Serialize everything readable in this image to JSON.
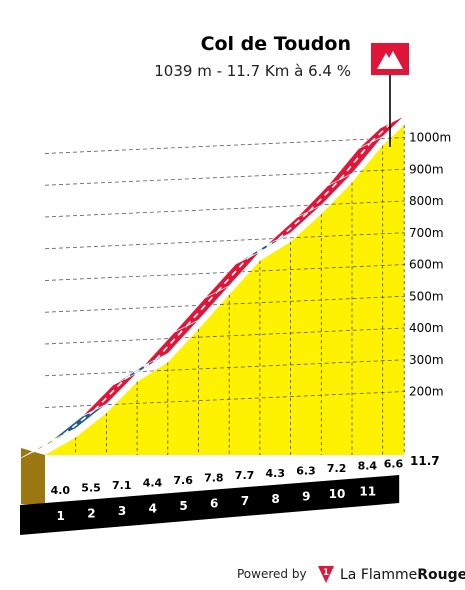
{
  "chart_data": {
    "type": "area",
    "title": "Col de Toudon",
    "subtitle": "1039 m - 11.7 Km à 6.4 %",
    "altitude_ticks": [
      "200m",
      "300m",
      "400m",
      "500m",
      "600m",
      "700m",
      "800m",
      "900m",
      "1000m"
    ],
    "altitude_values": [
      200,
      300,
      400,
      500,
      600,
      700,
      800,
      900,
      1000
    ],
    "km_labels": [
      "1",
      "2",
      "3",
      "4",
      "5",
      "6",
      "7",
      "8",
      "9",
      "10",
      "11"
    ],
    "total_distance_label": "11.7",
    "total_distance": 11.7,
    "segment_grades": [
      4.0,
      5.5,
      7.1,
      4.4,
      7.6,
      7.8,
      7.7,
      4.3,
      6.3,
      7.2,
      8.4,
      6.6
    ],
    "segment_grade_labels": [
      "4.0",
      "5.5",
      "7.1",
      "4.4",
      "7.6",
      "7.8",
      "7.7",
      "4.3",
      "6.3",
      "7.2",
      "8.4",
      "6.6"
    ],
    "segment_lengths_km": [
      1,
      1,
      1,
      1,
      1,
      1,
      1,
      1,
      1,
      1,
      1,
      0.7
    ],
    "grade_colors": [
      {
        "max": 4.0,
        "color": "#7ac231"
      },
      {
        "max": 5.9,
        "color": "#1f5c8e"
      },
      {
        "max": 99,
        "color": "#e0153a"
      }
    ],
    "fill_color": "#fff200",
    "side_color": "#9c7813",
    "base_color": "#000000",
    "summit_flag_color": "#e0153a",
    "ylim": [
      0,
      1050
    ]
  },
  "footer": {
    "powered_by": "Powered by",
    "brand_prefix": "La Flamme",
    "brand_suffix": "Rouge",
    "logo_glyph": "1"
  }
}
